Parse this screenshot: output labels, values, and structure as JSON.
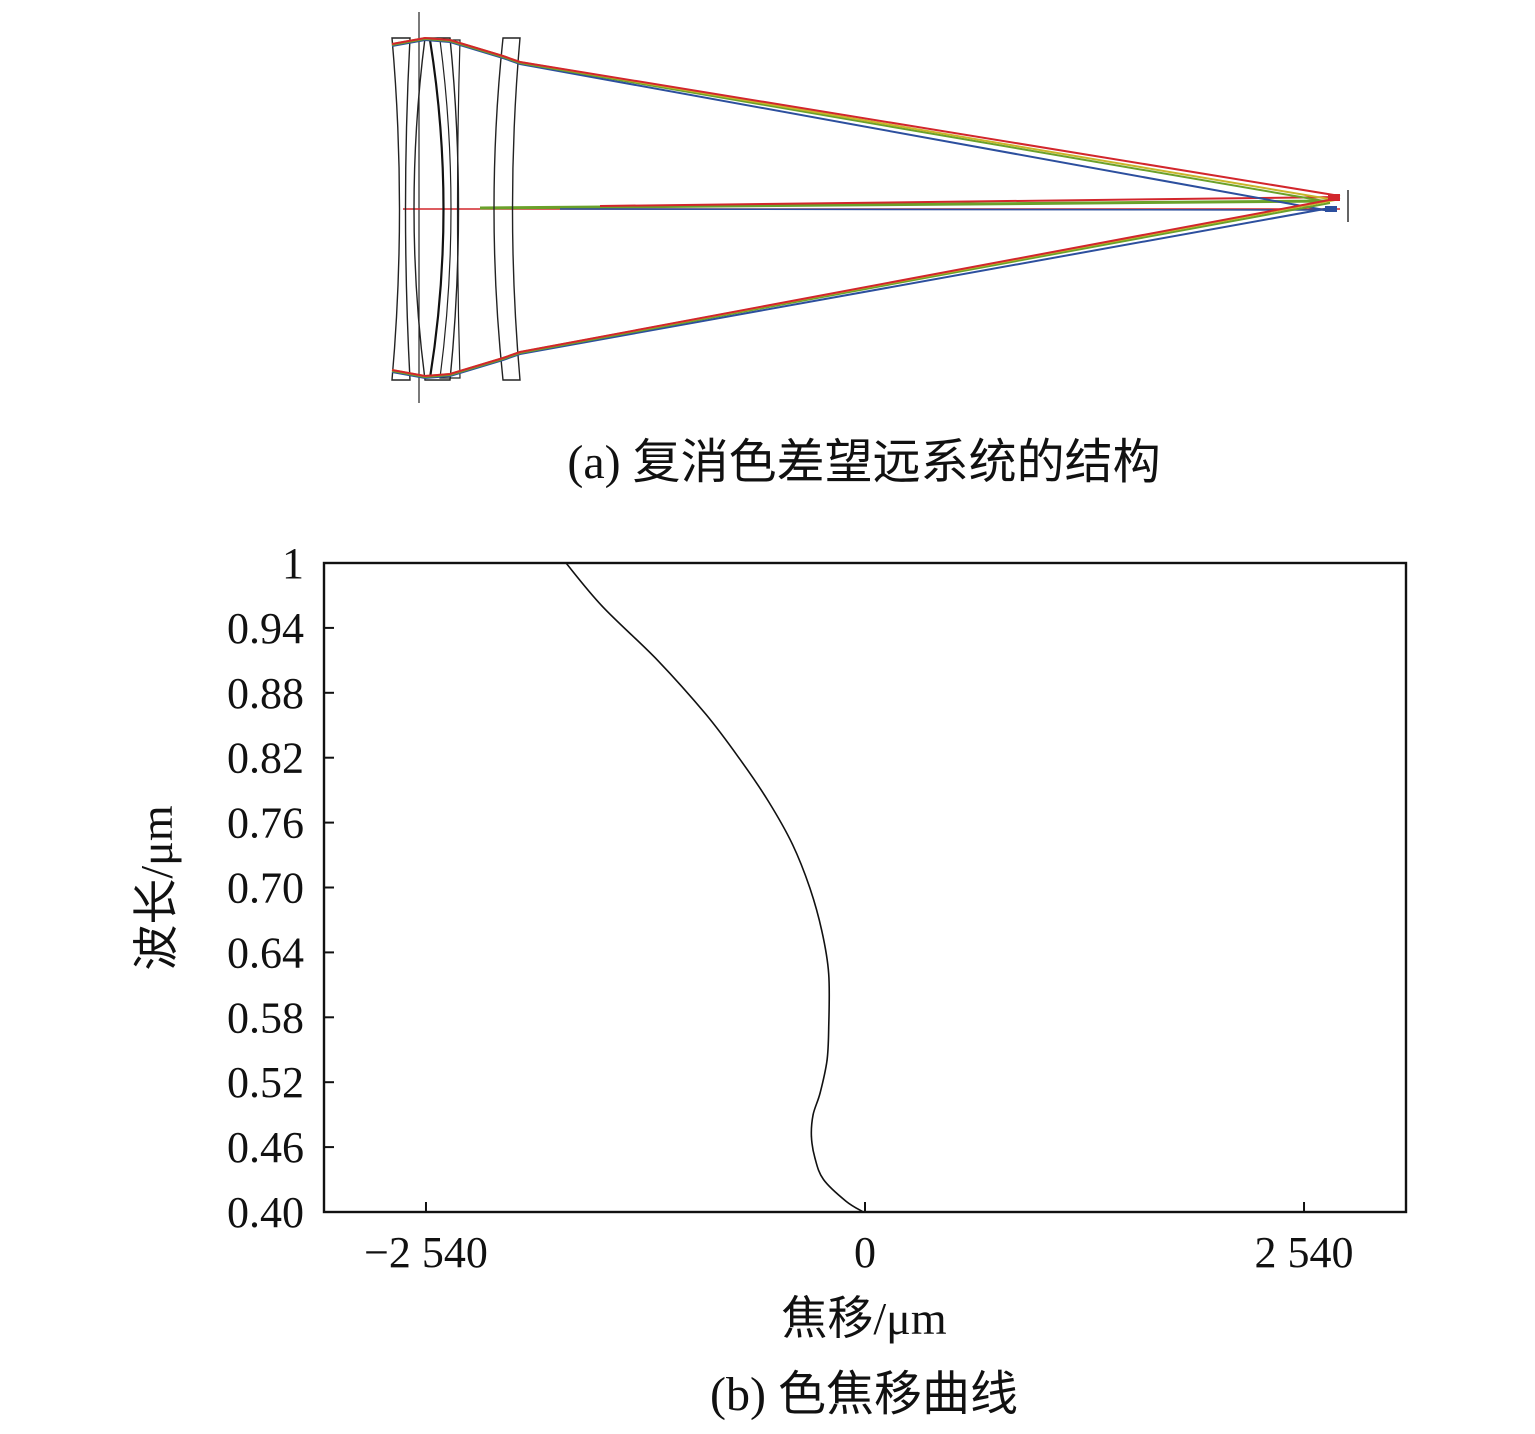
{
  "figure": {
    "caption_a": "(a) 复消色差望远系统的结构",
    "caption_b": "(b) 色焦移曲线"
  },
  "colors": {
    "ray_red": "#d2262c",
    "ray_green": "#6aa12a",
    "ray_yellow": "#c9b52a",
    "ray_blue": "#2c4f9e",
    "lens_outline": "#222222",
    "curve": "#111111"
  },
  "chart_data": {
    "type": "line",
    "xlabel": "焦移/μm",
    "ylabel": "波长/μm",
    "xlim": [
      -3130,
      3130
    ],
    "ylim": [
      0.4,
      1.0
    ],
    "x_ticks": [
      -2540,
      0,
      2540
    ],
    "x_tick_labels": [
      "−2 540",
      "0",
      "2 540"
    ],
    "y_ticks": [
      0.4,
      0.46,
      0.52,
      0.58,
      0.64,
      0.7,
      0.76,
      0.82,
      0.88,
      0.94,
      1.0
    ],
    "y_tick_labels": [
      "0.40",
      "0.46",
      "0.52",
      "0.58",
      "0.64",
      "0.70",
      "0.76",
      "0.82",
      "0.88",
      "0.94",
      "1"
    ],
    "grid": false,
    "series": [
      {
        "x": [
          -10,
          -110,
          -240,
          -290,
          -310,
          -300,
          -260,
          -220,
          -210,
          -210,
          -250,
          -320,
          -420,
          -560,
          -730,
          -920,
          -1200,
          -1520,
          -1730
        ],
        "y": [
          0.4,
          0.41,
          0.43,
          0.45,
          0.47,
          0.49,
          0.51,
          0.54,
          0.57,
          0.62,
          0.66,
          0.7,
          0.74,
          0.78,
          0.82,
          0.86,
          0.91,
          0.96,
          1.0
        ]
      }
    ]
  }
}
